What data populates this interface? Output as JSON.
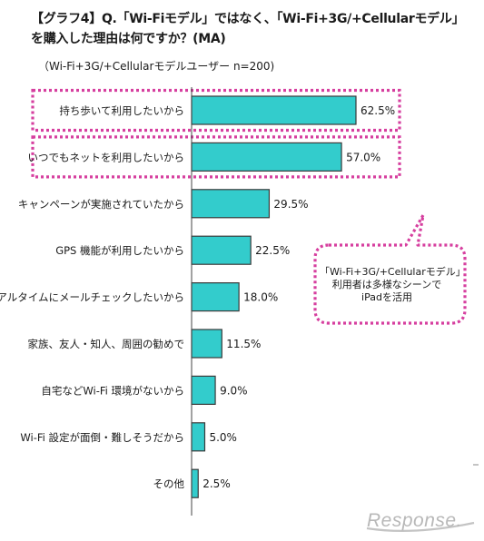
{
  "chart_data": {
    "type": "bar",
    "orientation": "horizontal",
    "title": [
      "【グラフ4】Q.「Wi-Fiモデル」ではなく、「Wi-Fi+3G/+Cellularモデル」",
      "を購入した理由は何ですか？(MA)"
    ],
    "subtitle": "（Wi-Fi+3G/+Cellularモデルユーザー n=200)",
    "categories": [
      "持ち歩いて利用したいから",
      "いつでもネットを利用したいから",
      "キャンペーンが実施されていたから",
      "GPS 機能が利用したいから",
      "リアルタイムにメールチェックしたいから",
      "家族、友人・知人、周囲の勧めで",
      "自宅などWi-Fi 環境がないから",
      "Wi-Fi 設定が面倒・難しそうだから",
      "その他"
    ],
    "values": [
      62.5,
      57.0,
      29.5,
      22.5,
      18.0,
      11.5,
      9.0,
      5.0,
      2.5
    ],
    "value_labels": [
      "62.5%",
      "57.0%",
      "29.5%",
      "22.5%",
      "18.0%",
      "11.5%",
      "9.0%",
      "5.0%",
      "2.5%"
    ],
    "highlighted_categories": [
      0,
      1
    ],
    "xlim": [
      0,
      100
    ],
    "grid": false,
    "bar_color": "#33cccc",
    "bar_border_color": "#3a3a3a",
    "highlight_color": "#d63f9f",
    "annotation": [
      "「Wi-Fi+3G/+Cellularモデル」",
      "利用者は多様なシーンで",
      "iPadを活用"
    ]
  },
  "watermark": "Response."
}
